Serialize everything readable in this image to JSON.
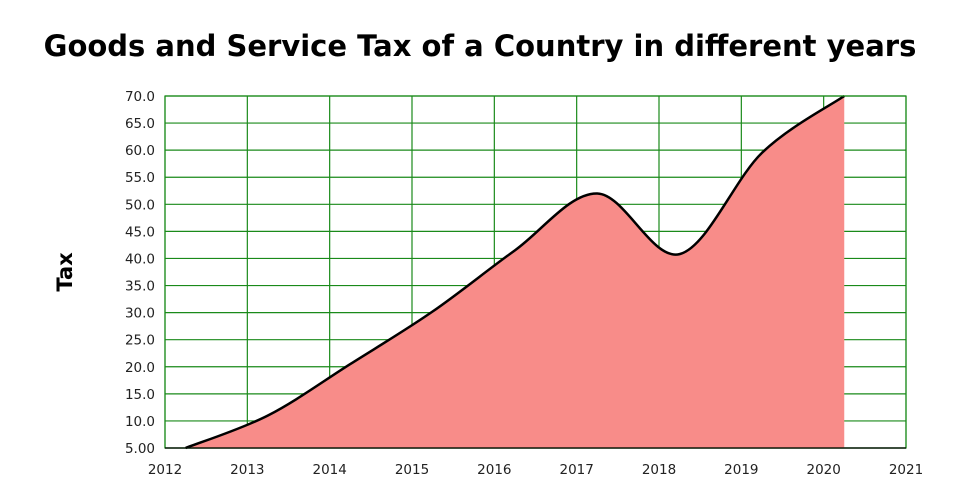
{
  "chart_data": {
    "type": "area",
    "title": "Goods and Service Tax of a Country in different years",
    "xlabel": "",
    "ylabel": "Tax",
    "x_ticks": [
      "2012",
      "2013",
      "2014",
      "2015",
      "2016",
      "2017",
      "2018",
      "2019",
      "2020",
      "2021"
    ],
    "y_ticks": [
      "5.00",
      "10.0",
      "15.0",
      "20.0",
      "25.0",
      "30.0",
      "35.0",
      "40.0",
      "45.0",
      "50.0",
      "55.0",
      "60.0",
      "65.0",
      "70.0"
    ],
    "xlim": [
      2012,
      2021
    ],
    "ylim": [
      5,
      70
    ],
    "grid": true,
    "series": [
      {
        "name": "Tax",
        "x": [
          2012.25,
          2013.25,
          2014.25,
          2015.25,
          2016.25,
          2017.25,
          2018.25,
          2019.25,
          2020.25
        ],
        "values": [
          5,
          11,
          20.5,
          30.2,
          41.5,
          52,
          40.8,
          59.5,
          70
        ],
        "fill": "#f88c89",
        "line": "#000000"
      }
    ],
    "grid_color": "#1a8a1a"
  }
}
